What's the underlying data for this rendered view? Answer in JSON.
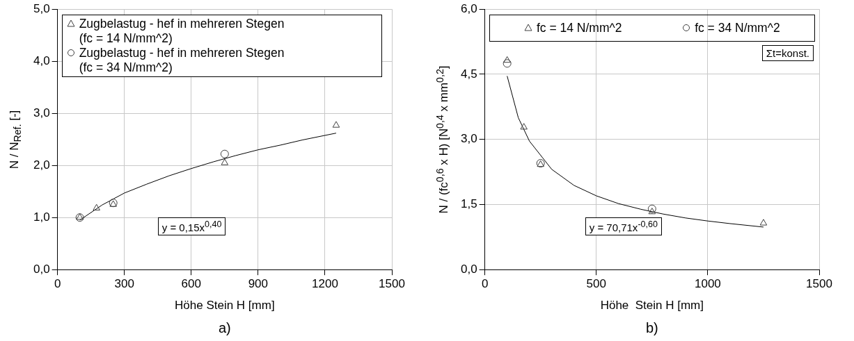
{
  "chart_data": [
    {
      "type": "scatter",
      "xlabel": "Höhe Stein H [mm]",
      "ylabel": "N / N$_{Ref.}$ [-]",
      "xlim": [
        0,
        1500
      ],
      "xticks": [
        0,
        300,
        600,
        900,
        1200,
        1500
      ],
      "ylim": [
        0,
        5
      ],
      "yticks": [
        {
          "value": 0,
          "label": "0,0"
        },
        {
          "value": 1,
          "label": "1,0"
        },
        {
          "value": 2,
          "label": "2,0"
        },
        {
          "value": 3,
          "label": "3,0"
        },
        {
          "value": 4,
          "label": "4,0"
        },
        {
          "value": 5,
          "label": "5,0"
        }
      ],
      "grid": true,
      "legend": "top left",
      "series": [
        {
          "name": "Zugbelastug - hef in mehreren Stegen (fc = 14 N/mm^2)",
          "color": "#404040",
          "marker": "triangle",
          "x": [
            100,
            175,
            250,
            750,
            1250
          ],
          "values": [
            1.0,
            1.18,
            1.25,
            2.05,
            2.77
          ]
        },
        {
          "name": "Zugbelastug - hef in mehreren Stegen (fc = 34 N/mm^2)",
          "color": "#404040",
          "marker": "circle",
          "x": [
            100,
            250,
            750
          ],
          "values": [
            1.0,
            1.28,
            2.22
          ]
        },
        {
          "type": "line",
          "color": "#000000",
          "marker": "none",
          "x": [
            100,
            200,
            300,
            400,
            500,
            600,
            700,
            800,
            900,
            1000,
            1100,
            1250
          ],
          "values": [
            0.95,
            1.24,
            1.47,
            1.64,
            1.8,
            1.94,
            2.07,
            2.19,
            2.3,
            2.39,
            2.49,
            2.62
          ]
        }
      ],
      "annotations": [
        "y = 0,15x$^{0,40}$",
        "a)"
      ]
    },
    {
      "type": "scatter",
      "xlabel": "Höhe  Stein H [mm]",
      "ylabel": "N / (fc$^{0,6}$ x H) [N$^{0,4}$ x mm$^{0,2}$]",
      "xlim": [
        0,
        1500
      ],
      "xticks": [
        0,
        500,
        1000,
        1500
      ],
      "ylim": [
        0,
        6
      ],
      "yticks": [
        {
          "value": 0,
          "label": "0,0"
        },
        {
          "value": 1.5,
          "label": "1,5"
        },
        {
          "value": 3,
          "label": "3,0"
        },
        {
          "value": 4.5,
          "label": "4,5"
        },
        {
          "value": 6,
          "label": "6,0"
        }
      ],
      "grid": true,
      "legend": "top",
      "series": [
        {
          "name": "fc = 14 N/mm^2",
          "color": "#404040",
          "marker": "triangle",
          "x": [
            100,
            175,
            250,
            750,
            1250
          ],
          "values": [
            4.82,
            3.28,
            2.42,
            1.33,
            1.07
          ]
        },
        {
          "name": "fc = 34 N/mm^2",
          "color": "#404040",
          "marker": "circle",
          "x": [
            100,
            250,
            750
          ],
          "values": [
            4.75,
            2.45,
            1.4
          ]
        },
        {
          "type": "line",
          "color": "#000000",
          "marker": "none",
          "x": [
            100,
            150,
            200,
            300,
            400,
            500,
            600,
            700,
            800,
            900,
            1000,
            1100,
            1250
          ],
          "values": [
            4.46,
            3.5,
            2.96,
            2.31,
            1.94,
            1.7,
            1.52,
            1.39,
            1.28,
            1.19,
            1.12,
            1.06,
            0.98
          ]
        }
      ],
      "annotations": [
        "y = 70,71x$^{-0,60}$",
        "Σt=konst.",
        "b)"
      ]
    }
  ]
}
